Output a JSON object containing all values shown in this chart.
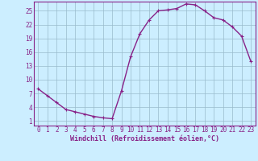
{
  "x": [
    0,
    1,
    2,
    3,
    4,
    5,
    6,
    7,
    8,
    9,
    10,
    11,
    12,
    13,
    14,
    15,
    16,
    17,
    18,
    19,
    20,
    21,
    22,
    23
  ],
  "y": [
    8.0,
    6.5,
    5.0,
    3.5,
    3.0,
    2.5,
    2.0,
    1.7,
    1.5,
    7.5,
    15.0,
    20.0,
    23.0,
    25.0,
    25.2,
    25.5,
    26.5,
    26.3,
    25.0,
    23.5,
    23.0,
    21.5,
    19.5,
    14.0
  ],
  "line_color": "#882288",
  "marker": "+",
  "marker_size": 3,
  "xlabel": "Windchill (Refroidissement éolien,°C)",
  "xlabel_fontsize": 6,
  "xlim": [
    -0.5,
    23.5
  ],
  "ylim": [
    0,
    27
  ],
  "yticks": [
    1,
    4,
    7,
    10,
    13,
    16,
    19,
    22,
    25
  ],
  "xticks": [
    0,
    1,
    2,
    3,
    4,
    5,
    6,
    7,
    8,
    9,
    10,
    11,
    12,
    13,
    14,
    15,
    16,
    17,
    18,
    19,
    20,
    21,
    22,
    23
  ],
  "bg_color": "#cceeff",
  "grid_color": "#99bbcc",
  "tick_color": "#882288",
  "label_color": "#882288",
  "axis_color": "#882288",
  "line_width": 1.0,
  "tick_labelsize": 5.5
}
